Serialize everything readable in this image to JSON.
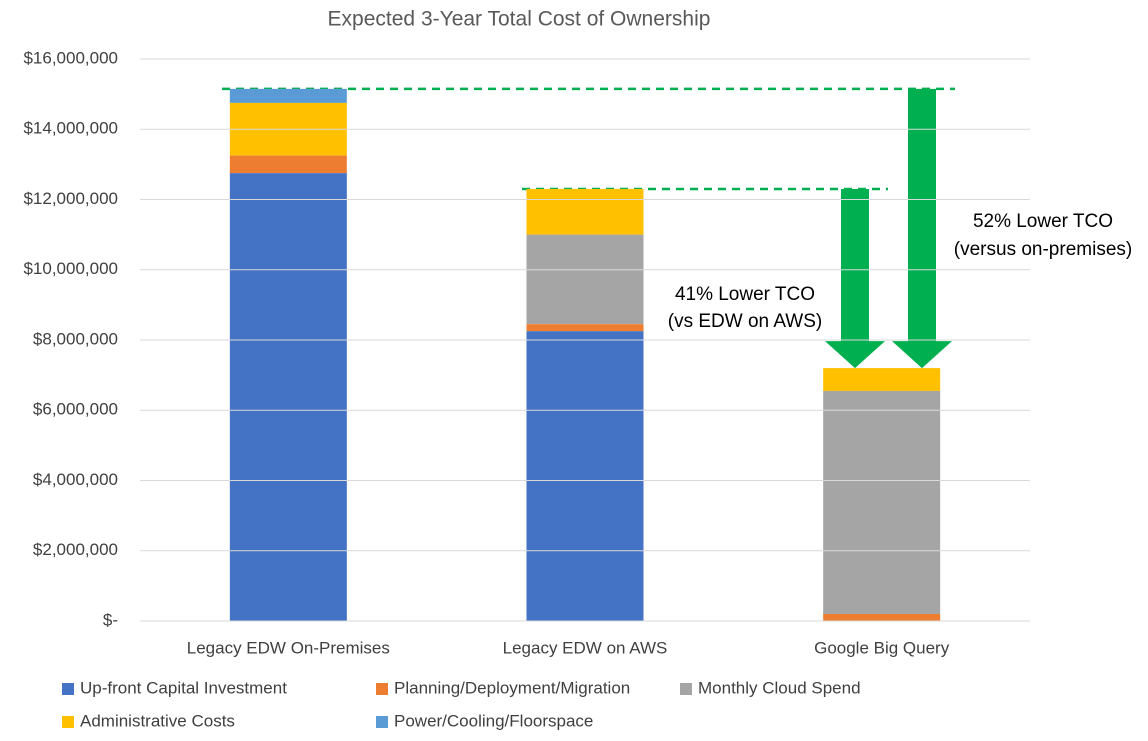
{
  "chart_data": {
    "type": "stacked_bar",
    "title": "Expected 3-Year Total Cost of Ownership",
    "categories": [
      "Legacy EDW On-Premises",
      "Legacy EDW on AWS",
      "Google Big Query"
    ],
    "series": [
      {
        "name": "Up-front Capital Investment",
        "color": "#4472c4",
        "values": [
          12750000,
          8250000,
          0
        ]
      },
      {
        "name": "Planning/Deployment/Migration",
        "color": "#ed7d31",
        "values": [
          500000,
          200000,
          200000
        ]
      },
      {
        "name": "Monthly Cloud Spend",
        "color": "#a5a5a5",
        "values": [
          0,
          2550000,
          6350000
        ]
      },
      {
        "name": "Administrative Costs",
        "color": "#ffc000",
        "values": [
          1500000,
          1300000,
          650000
        ]
      },
      {
        "name": "Power/Cooling/Floorspace",
        "color": "#5b9bd5",
        "values": [
          400000,
          0,
          0
        ]
      }
    ],
    "ylim": [
      0,
      16000000
    ],
    "yticks": [
      {
        "value": 0,
        "label": "$-"
      },
      {
        "value": 2000000,
        "label": "$2,000,000"
      },
      {
        "value": 4000000,
        "label": "$4,000,000"
      },
      {
        "value": 6000000,
        "label": "$6,000,000"
      },
      {
        "value": 8000000,
        "label": "$8,000,000"
      },
      {
        "value": 10000000,
        "label": "$10,000,000"
      },
      {
        "value": 12000000,
        "label": "$12,000,000"
      },
      {
        "value": 14000000,
        "label": "$14,000,000"
      },
      {
        "value": 16000000,
        "label": "$16,000,000"
      }
    ],
    "grid": true,
    "legend": "bottom",
    "annotations": [
      "41% Lower TCO",
      "(vs EDW on AWS)",
      "52% Lower TCO",
      "(versus on-premises)"
    ]
  }
}
